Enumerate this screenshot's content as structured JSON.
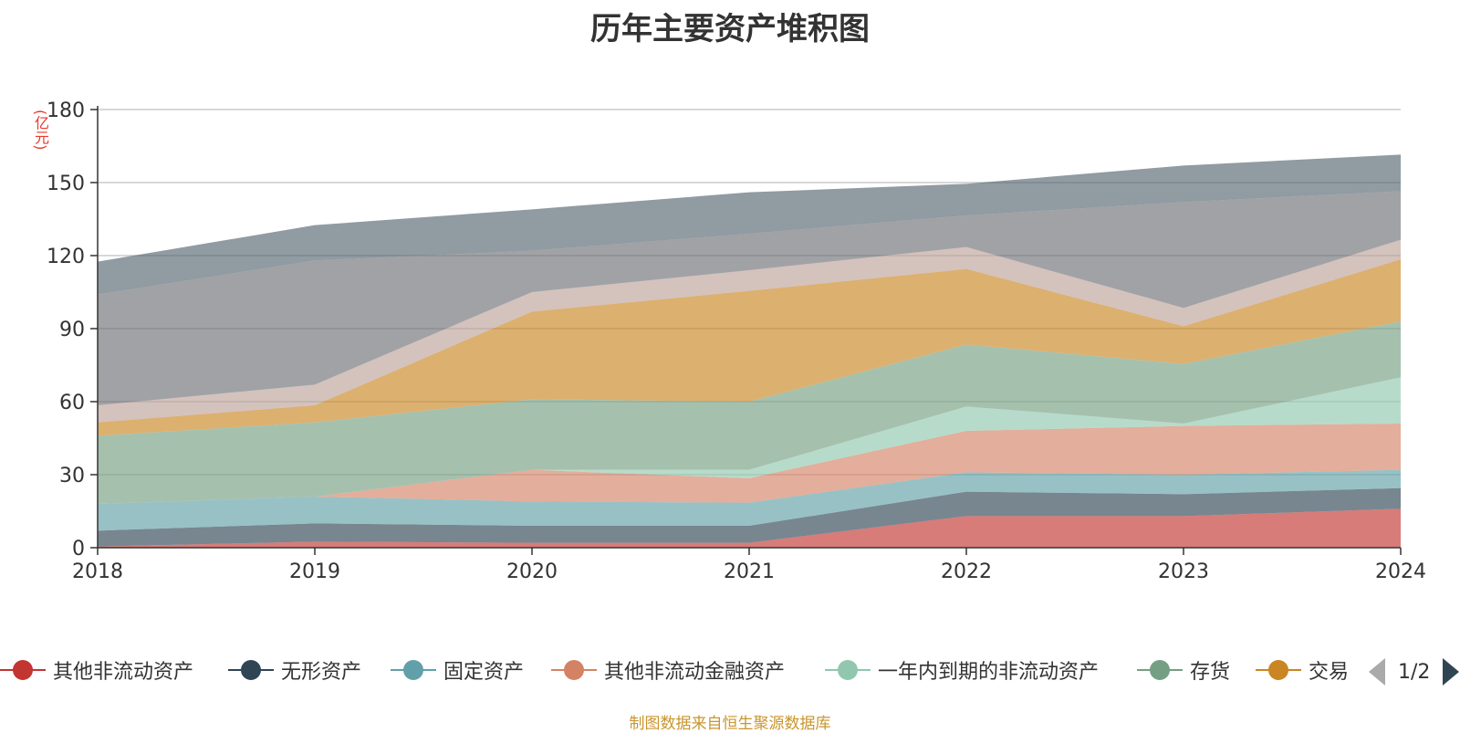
{
  "chart_data": {
    "type": "area",
    "title": "历年主要资产堆积图",
    "unit_label": "(亿元)",
    "x": [
      "2018",
      "2019",
      "2020",
      "2021",
      "2022",
      "2023",
      "2024"
    ],
    "ylim": [
      0,
      180
    ],
    "yticks": [
      "0",
      "30",
      "60",
      "90",
      "120",
      "150",
      "180"
    ],
    "grid": true,
    "stacked": true,
    "series": [
      {
        "name": "其他非流动资产",
        "color": "#c23531",
        "values": [
          0.5,
          2.5,
          2.0,
          2.0,
          13.0,
          13.0,
          16.0
        ]
      },
      {
        "name": "无形资产",
        "color": "#2f4554",
        "values": [
          6.5,
          7.5,
          7.0,
          7.0,
          10.0,
          9.0,
          8.5
        ]
      },
      {
        "name": "固定资产",
        "color": "#61a0a8",
        "values": [
          11.0,
          11.0,
          10.0,
          9.5,
          8.0,
          8.0,
          7.5
        ]
      },
      {
        "name": "其他非流动金融资产",
        "color": "#d48265",
        "values": [
          0,
          0,
          13.0,
          10.0,
          17.0,
          20.0,
          19.0
        ]
      },
      {
        "name": "一年内到期的非流动资产",
        "color": "#91c7ae",
        "values": [
          0,
          0,
          0,
          3.5,
          10.0,
          1.0,
          19.0
        ]
      },
      {
        "name": "存货",
        "color": "#749f83",
        "values": [
          28.0,
          30.5,
          29.0,
          28.0,
          25.5,
          24.5,
          23.0
        ]
      },
      {
        "name": "交易",
        "color": "#ca8622",
        "values": [
          5.5,
          7.0,
          36.0,
          45.5,
          31.0,
          15.5,
          25.5
        ]
      },
      {
        "name": "",
        "color": "#bda29a",
        "values": [
          7.0,
          8.5,
          8.0,
          8.5,
          9.0,
          7.5,
          8.0
        ]
      },
      {
        "name": "",
        "color": "#6e7074",
        "values": [
          45.5,
          51.0,
          17.0,
          15.0,
          13.0,
          43.5,
          20.0
        ]
      },
      {
        "name": "",
        "color": "#546570",
        "values": [
          13.5,
          14.5,
          17.0,
          17.0,
          13.0,
          15.0,
          15.0
        ]
      }
    ]
  },
  "legend": {
    "items": [
      {
        "label": "其他非流动资产",
        "color": "#c23531"
      },
      {
        "label": "无形资产",
        "color": "#2f4554"
      },
      {
        "label": "固定资产",
        "color": "#61a0a8"
      },
      {
        "label": "其他非流动金融资产",
        "color": "#d48265"
      },
      {
        "label": "一年内到期的非流动资产",
        "color": "#91c7ae"
      },
      {
        "label": "存货",
        "color": "#749f83"
      },
      {
        "label": "交易",
        "color": "#ca8622"
      }
    ],
    "page_indicator": "1/2"
  },
  "footer": {
    "source": "制图数据来自恒生聚源数据库"
  }
}
